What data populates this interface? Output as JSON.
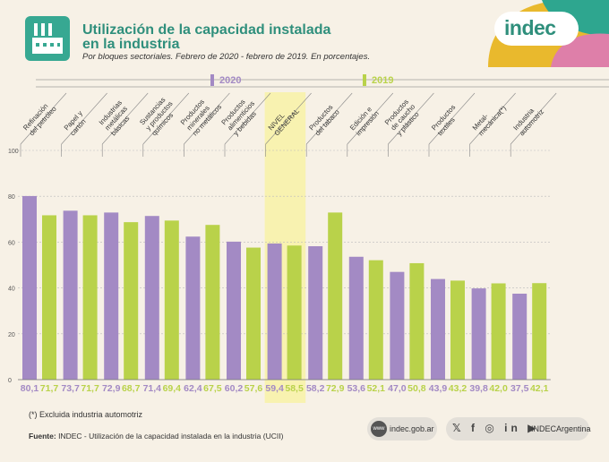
{
  "header": {
    "title_line1": "Utilización de la capacidad instalada",
    "title_line2": "en la industria",
    "subtitle": "Por bloques sectoriales. Febrero de 2020 - febrero de 2019. En porcentajes.",
    "brand": "indec"
  },
  "colors": {
    "teal": "#37a892",
    "purple": "#a38ac4",
    "green": "#b9d24a",
    "highlight": "#f8f2b0",
    "corner_teal": "#2ea68f",
    "corner_yellow": "#e9b92d",
    "corner_pink": "#de7fa9"
  },
  "chart_data": {
    "type": "bar",
    "title": "Utilización de la capacidad instalada en la industria",
    "categories": [
      "Refinación del petróleo",
      "Papel y cartón",
      "Industrias metálicas básicas",
      "Sustancias y productos químicos",
      "Productos minerales no metálicos",
      "Productos alimenticios y bebidas",
      "NIVEL GENERAL",
      "Productos del tabaco",
      "Edición e impresión",
      "Productos de caucho y plástico",
      "Productos textiles",
      "Metal-mecánica(*)",
      "Industria automotriz"
    ],
    "category_lines": [
      [
        "Refinación",
        "del petróleo"
      ],
      [
        "Papel y",
        "cartón"
      ],
      [
        "Industrias",
        "metálicas",
        "básicas"
      ],
      [
        "Sustancias",
        "y productos",
        "químicos"
      ],
      [
        "Productos",
        "minerales",
        "no metálicos"
      ],
      [
        "Productos",
        "alimenticios",
        "y bebidas"
      ],
      [
        "NIVEL",
        "GENERAL"
      ],
      [
        "Productos",
        "del tabaco"
      ],
      [
        "Edición e",
        "impresión"
      ],
      [
        "Productos",
        "de caucho",
        "y plástico"
      ],
      [
        "Productos",
        "textiles"
      ],
      [
        "Metal-",
        "mecánica(*)"
      ],
      [
        "Industria",
        "automotriz"
      ]
    ],
    "series": [
      {
        "name": "2020",
        "values": [
          80.1,
          73.7,
          72.9,
          71.4,
          62.4,
          60.2,
          59.4,
          58.2,
          53.6,
          47.0,
          43.9,
          39.8,
          37.5
        ]
      },
      {
        "name": "2019",
        "values": [
          71.7,
          71.7,
          68.7,
          69.4,
          67.5,
          57.6,
          58.5,
          72.9,
          52.1,
          50.8,
          43.2,
          42.0,
          42.1
        ]
      }
    ],
    "value_labels": {
      "2020": [
        "80,1",
        "73,7",
        "72,9",
        "71,4",
        "62,4",
        "60,2",
        "59,4",
        "58,2",
        "53,6",
        "47,0",
        "43,9",
        "39,8",
        "37,5"
      ],
      "2019": [
        "71,7",
        "71,7",
        "68,7",
        "69,4",
        "67,5",
        "57,6",
        "58,5",
        "72,9",
        "52,1",
        "50,8",
        "43,2",
        "42,0",
        "42,1"
      ]
    },
    "y_ticks": [
      "0",
      "20",
      "40",
      "60",
      "80",
      "100"
    ],
    "ylim": [
      0,
      100
    ],
    "highlight_category": "NIVEL GENERAL",
    "legend": [
      "2020",
      "2019"
    ],
    "legend_position": "top"
  },
  "footer": {
    "footnote": "(*) Excluida industria automotriz",
    "source_label": "Fuente:",
    "source_text": " INDEC - Utilización de la capacidad instalada en la industria (UCII)",
    "website": "indec.gob.ar",
    "web_icon": "www",
    "social_icons": "𝕏 f ◎ in ▶",
    "social_handle": "INDECArgentina"
  }
}
